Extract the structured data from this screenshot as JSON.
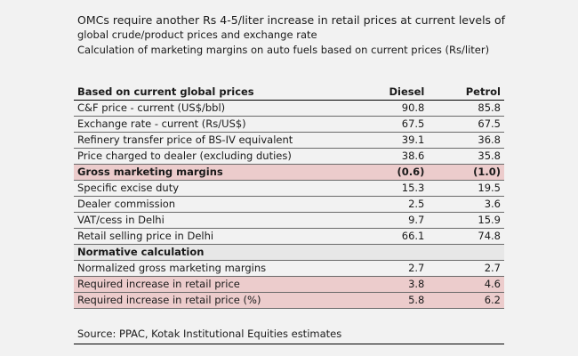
{
  "title": "OMCs require another Rs 4-5/liter increase in retail prices at current levels of",
  "subtitle_line1": "global crude/product prices and exchange rate",
  "subtitle_line2": "Calculation of marketing margins on auto fuels based on current prices (Rs/liter)",
  "table": {
    "headers": [
      "Based on current global prices",
      "Diesel",
      "Petrol"
    ],
    "rows": [
      {
        "label": "C&F price - current (US$/bbl)",
        "diesel": "90.8",
        "petrol": "85.8",
        "style": ""
      },
      {
        "label": "Exchange rate - current (Rs/US$)",
        "diesel": "67.5",
        "petrol": "67.5",
        "style": ""
      },
      {
        "label": "Refinery transfer price of BS-IV equivalent",
        "diesel": "39.1",
        "petrol": "36.8",
        "style": ""
      },
      {
        "label": "Price charged to dealer (excluding duties)",
        "diesel": "38.6",
        "petrol": "35.8",
        "style": ""
      },
      {
        "label": "Gross marketing margins",
        "diesel": "(0.6)",
        "petrol": "(1.0)",
        "style": "hl bold"
      },
      {
        "label": "Specific excise duty",
        "diesel": "15.3",
        "petrol": "19.5",
        "style": ""
      },
      {
        "label": "Dealer commission",
        "diesel": "2.5",
        "petrol": "3.6",
        "style": ""
      },
      {
        "label": "VAT/cess in Delhi",
        "diesel": "9.7",
        "petrol": "15.9",
        "style": ""
      },
      {
        "label": "Retail selling price in Delhi",
        "diesel": "66.1",
        "petrol": "74.8",
        "style": ""
      },
      {
        "label": "Normative calculation",
        "diesel": "",
        "petrol": "",
        "style": "section"
      },
      {
        "label": "Normalized gross marketing margins",
        "diesel": "2.7",
        "petrol": "2.7",
        "style": ""
      },
      {
        "label": "Required increase in retail price",
        "diesel": "3.8",
        "petrol": "4.6",
        "style": "hl"
      },
      {
        "label": "Required increase in retail price (%)",
        "diesel": "5.8",
        "petrol": "6.2",
        "style": "hl"
      }
    ]
  },
  "source": "Source: PPAC, Kotak Institutional Equities estimates",
  "colors": {
    "highlight": "#eccccc",
    "section": "#e7e7e7",
    "background": "#f2f2f2"
  }
}
